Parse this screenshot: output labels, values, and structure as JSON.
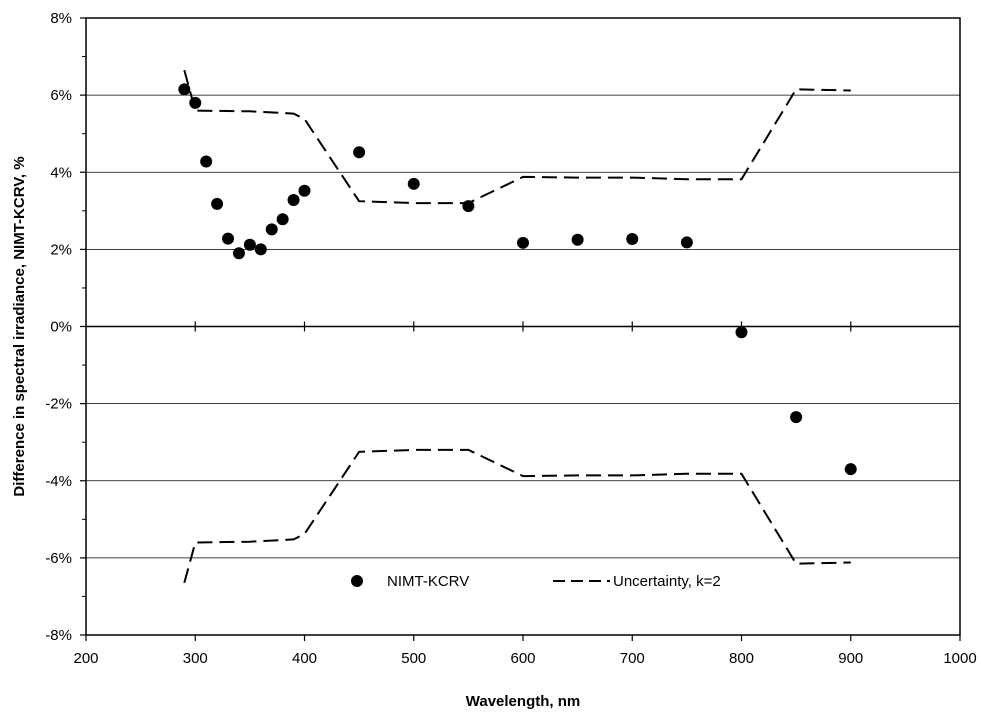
{
  "chart_data": {
    "type": "scatter",
    "xlabel": "Wavelength, nm",
    "ylabel": "Difference in spectral irradiance, NIMT-KCRV, %",
    "xlim": [
      200,
      1000
    ],
    "ylim": [
      -8,
      8
    ],
    "x_ticks": [
      "200",
      "300",
      "400",
      "500",
      "600",
      "700",
      "800",
      "900",
      "1000"
    ],
    "y_ticks": [
      "-8%",
      "-6%",
      "-4%",
      "-2%",
      "0%",
      "2%",
      "4%",
      "6%",
      "8%"
    ],
    "grid": "horizontal major gridlines",
    "legend_position": "bottom-center",
    "series": [
      {
        "name": "NIMT-KCRV",
        "style": "markers",
        "color": "#000000",
        "x": [
          290,
          300,
          310,
          320,
          330,
          340,
          350,
          360,
          370,
          380,
          390,
          400,
          450,
          500,
          550,
          600,
          650,
          700,
          750,
          800,
          850,
          900
        ],
        "y": [
          6.15,
          5.8,
          4.28,
          3.18,
          2.28,
          1.9,
          2.12,
          2.0,
          2.52,
          2.78,
          3.28,
          3.52,
          4.52,
          3.7,
          3.12,
          2.17,
          2.25,
          2.27,
          2.18,
          -0.15,
          -2.35,
          -3.7
        ]
      },
      {
        "name": "Uncertainty, k=2",
        "style": "dashed-line",
        "color": "#000000",
        "x": [
          290,
          300,
          350,
          390,
          400,
          450,
          500,
          550,
          600,
          650,
          700,
          750,
          800,
          850,
          900
        ],
        "y": [
          6.65,
          5.6,
          5.58,
          5.52,
          5.38,
          3.25,
          3.2,
          3.2,
          3.88,
          3.86,
          3.86,
          3.82,
          3.82,
          6.15,
          6.12
        ]
      },
      {
        "name": "",
        "style": "dashed-line",
        "color": "#000000",
        "x": [
          290,
          300,
          350,
          390,
          400,
          450,
          500,
          550,
          600,
          650,
          700,
          750,
          800,
          850,
          900
        ],
        "y": [
          -6.65,
          -5.6,
          -5.58,
          -5.52,
          -5.38,
          -3.25,
          -3.2,
          -3.2,
          -3.88,
          -3.86,
          -3.86,
          -3.82,
          -3.82,
          -6.15,
          -6.12
        ]
      }
    ]
  }
}
